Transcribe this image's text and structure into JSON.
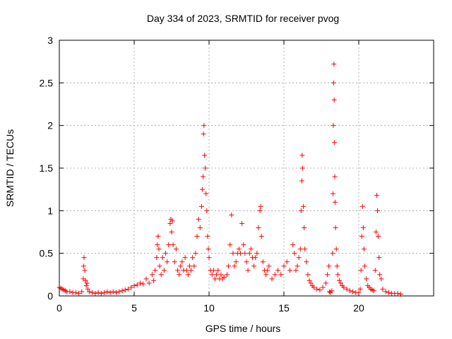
{
  "chart_data": {
    "type": "scatter",
    "title": "Day 334 of 2023, SRMTID for receiver pvog",
    "xlabel": "GPS time / hours",
    "ylabel": "SRMTID / TECUs",
    "xlim": [
      0,
      25
    ],
    "ylim": [
      0,
      3
    ],
    "xticks": [
      0,
      5,
      10,
      15,
      20
    ],
    "xtick_labels": [
      "0",
      "5",
      "10",
      "15",
      "20"
    ],
    "yticks": [
      0,
      0.5,
      1,
      1.5,
      2,
      2.5,
      3
    ],
    "ytick_labels": [
      "0",
      "0.5",
      "1",
      "1.5",
      "2",
      "2.5",
      "3"
    ],
    "grid": true,
    "marker": "+",
    "series": [
      {
        "name": "SRMTID",
        "color": "#ff0000",
        "points": [
          [
            0.0,
            0.1
          ],
          [
            0.1,
            0.09
          ],
          [
            0.2,
            0.08
          ],
          [
            0.3,
            0.07
          ],
          [
            0.4,
            0.06
          ],
          [
            0.5,
            0.05
          ],
          [
            0.7,
            0.05
          ],
          [
            0.9,
            0.04
          ],
          [
            1.1,
            0.04
          ],
          [
            1.3,
            0.03
          ],
          [
            1.5,
            0.05
          ],
          [
            1.6,
            0.2
          ],
          [
            1.62,
            0.35
          ],
          [
            1.65,
            0.45
          ],
          [
            1.7,
            0.3
          ],
          [
            1.75,
            0.18
          ],
          [
            1.8,
            0.12
          ],
          [
            1.85,
            0.15
          ],
          [
            1.9,
            0.08
          ],
          [
            2.0,
            0.05
          ],
          [
            2.2,
            0.04
          ],
          [
            2.4,
            0.03
          ],
          [
            2.6,
            0.04
          ],
          [
            2.8,
            0.03
          ],
          [
            3.0,
            0.04
          ],
          [
            3.2,
            0.05
          ],
          [
            3.4,
            0.04
          ],
          [
            3.6,
            0.05
          ],
          [
            3.8,
            0.04
          ],
          [
            4.0,
            0.05
          ],
          [
            4.2,
            0.06
          ],
          [
            4.4,
            0.07
          ],
          [
            4.6,
            0.08
          ],
          [
            4.8,
            0.1
          ],
          [
            5.0,
            0.12
          ],
          [
            5.2,
            0.13
          ],
          [
            5.4,
            0.15
          ],
          [
            5.6,
            0.14
          ],
          [
            5.8,
            0.2
          ],
          [
            6.0,
            0.15
          ],
          [
            6.2,
            0.25
          ],
          [
            6.3,
            0.18
          ],
          [
            6.4,
            0.3
          ],
          [
            6.5,
            0.45
          ],
          [
            6.55,
            0.6
          ],
          [
            6.6,
            0.7
          ],
          [
            6.65,
            0.55
          ],
          [
            6.7,
            0.35
          ],
          [
            6.8,
            0.25
          ],
          [
            6.9,
            0.45
          ],
          [
            7.0,
            0.3
          ],
          [
            7.1,
            0.5
          ],
          [
            7.2,
            0.4
          ],
          [
            7.3,
            0.6
          ],
          [
            7.4,
            0.85
          ],
          [
            7.45,
            0.9
          ],
          [
            7.5,
            0.75
          ],
          [
            7.55,
            0.88
          ],
          [
            7.6,
            0.6
          ],
          [
            7.7,
            0.4
          ],
          [
            7.8,
            0.55
          ],
          [
            7.9,
            0.3
          ],
          [
            8.0,
            0.25
          ],
          [
            8.1,
            0.35
          ],
          [
            8.2,
            0.4
          ],
          [
            8.3,
            0.3
          ],
          [
            8.4,
            0.45
          ],
          [
            8.5,
            0.3
          ],
          [
            8.6,
            0.25
          ],
          [
            8.7,
            0.35
          ],
          [
            8.8,
            0.3
          ],
          [
            8.9,
            0.45
          ],
          [
            9.0,
            0.35
          ],
          [
            9.1,
            0.5
          ],
          [
            9.2,
            0.7
          ],
          [
            9.3,
            0.9
          ],
          [
            9.4,
            0.8
          ],
          [
            9.5,
            1.05
          ],
          [
            9.55,
            1.25
          ],
          [
            9.6,
            1.4
          ],
          [
            9.63,
            1.9
          ],
          [
            9.66,
            2.0
          ],
          [
            9.7,
            1.65
          ],
          [
            9.75,
            1.5
          ],
          [
            9.8,
            1.2
          ],
          [
            9.85,
            1.0
          ],
          [
            9.9,
            0.7
          ],
          [
            9.95,
            0.55
          ],
          [
            10.0,
            0.45
          ],
          [
            10.1,
            0.3
          ],
          [
            10.2,
            0.25
          ],
          [
            10.3,
            0.3
          ],
          [
            10.4,
            0.2
          ],
          [
            10.5,
            0.25
          ],
          [
            10.6,
            0.3
          ],
          [
            10.7,
            0.2
          ],
          [
            10.8,
            0.25
          ],
          [
            10.9,
            0.2
          ],
          [
            11.0,
            0.22
          ],
          [
            11.2,
            0.25
          ],
          [
            11.3,
            0.35
          ],
          [
            11.4,
            0.6
          ],
          [
            11.5,
            0.95
          ],
          [
            11.6,
            0.5
          ],
          [
            11.7,
            0.35
          ],
          [
            11.8,
            0.4
          ],
          [
            11.9,
            0.5
          ],
          [
            12.0,
            0.55
          ],
          [
            12.1,
            0.5
          ],
          [
            12.2,
            0.85
          ],
          [
            12.3,
            0.6
          ],
          [
            12.4,
            0.5
          ],
          [
            12.5,
            0.4
          ],
          [
            12.6,
            0.3
          ],
          [
            12.7,
            0.5
          ],
          [
            12.8,
            0.55
          ],
          [
            12.9,
            0.45
          ],
          [
            13.0,
            0.35
          ],
          [
            13.1,
            0.45
          ],
          [
            13.2,
            0.5
          ],
          [
            13.3,
            0.8
          ],
          [
            13.4,
            1.0
          ],
          [
            13.45,
            1.05
          ],
          [
            13.5,
            0.7
          ],
          [
            13.6,
            0.4
          ],
          [
            13.7,
            0.3
          ],
          [
            13.8,
            0.25
          ],
          [
            13.9,
            0.3
          ],
          [
            14.0,
            0.35
          ],
          [
            14.2,
            0.2
          ],
          [
            14.4,
            0.25
          ],
          [
            14.6,
            0.3
          ],
          [
            14.8,
            0.25
          ],
          [
            15.0,
            0.35
          ],
          [
            15.2,
            0.4
          ],
          [
            15.4,
            0.3
          ],
          [
            15.6,
            0.6
          ],
          [
            15.7,
            0.5
          ],
          [
            15.8,
            0.3
          ],
          [
            15.9,
            0.35
          ],
          [
            16.0,
            0.45
          ],
          [
            16.1,
            0.55
          ],
          [
            16.15,
            1.0
          ],
          [
            16.2,
            1.35
          ],
          [
            16.22,
            1.65
          ],
          [
            16.25,
            1.5
          ],
          [
            16.3,
            1.05
          ],
          [
            16.35,
            0.8
          ],
          [
            16.4,
            0.55
          ],
          [
            16.5,
            0.4
          ],
          [
            16.6,
            0.25
          ],
          [
            16.7,
            0.18
          ],
          [
            16.8,
            0.15
          ],
          [
            16.9,
            0.12
          ],
          [
            17.0,
            0.1
          ],
          [
            17.2,
            0.08
          ],
          [
            17.4,
            0.07
          ],
          [
            17.6,
            0.1
          ],
          [
            17.8,
            0.15
          ],
          [
            17.9,
            0.25
          ],
          [
            18.0,
            0.35
          ],
          [
            18.05,
            0.05
          ],
          [
            18.1,
            0.04
          ],
          [
            18.2,
            0.06
          ],
          [
            18.25,
            0.5
          ],
          [
            18.28,
            1.2
          ],
          [
            18.3,
            2.0
          ],
          [
            18.32,
            2.5
          ],
          [
            18.34,
            2.72
          ],
          [
            18.36,
            2.3
          ],
          [
            18.38,
            1.8
          ],
          [
            18.4,
            1.4
          ],
          [
            18.42,
            1.1
          ],
          [
            18.45,
            0.8
          ],
          [
            18.5,
            0.55
          ],
          [
            18.55,
            0.35
          ],
          [
            18.6,
            0.25
          ],
          [
            18.7,
            0.18
          ],
          [
            18.8,
            0.15
          ],
          [
            18.9,
            0.12
          ],
          [
            19.0,
            0.1
          ],
          [
            19.2,
            0.08
          ],
          [
            19.4,
            0.06
          ],
          [
            19.6,
            0.05
          ],
          [
            19.8,
            0.04
          ],
          [
            20.0,
            0.04
          ],
          [
            20.1,
            0.08
          ],
          [
            20.15,
            0.3
          ],
          [
            20.2,
            0.7
          ],
          [
            20.25,
            1.05
          ],
          [
            20.3,
            0.8
          ],
          [
            20.35,
            0.55
          ],
          [
            20.4,
            0.35
          ],
          [
            20.5,
            0.2
          ],
          [
            20.6,
            0.12
          ],
          [
            20.7,
            0.1
          ],
          [
            20.8,
            0.08
          ],
          [
            20.9,
            0.07
          ],
          [
            21.0,
            0.06
          ],
          [
            21.1,
            0.3
          ],
          [
            21.15,
            0.75
          ],
          [
            21.2,
            1.18
          ],
          [
            21.25,
            1.0
          ],
          [
            21.3,
            0.7
          ],
          [
            21.35,
            0.45
          ],
          [
            21.4,
            0.25
          ],
          [
            21.5,
            0.2
          ],
          [
            21.6,
            0.08
          ],
          [
            21.8,
            0.05
          ],
          [
            22.0,
            0.04
          ],
          [
            22.2,
            0.03
          ],
          [
            22.4,
            0.03
          ],
          [
            22.6,
            0.03
          ],
          [
            22.8,
            0.02
          ]
        ]
      }
    ]
  }
}
